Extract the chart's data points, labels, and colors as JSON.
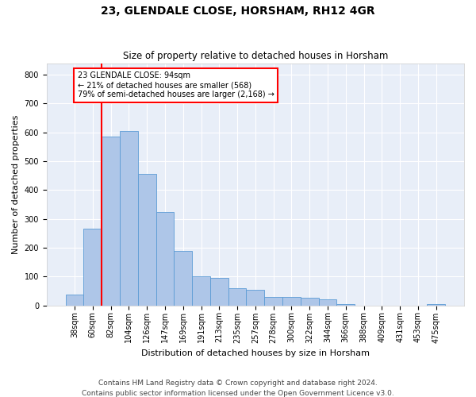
{
  "title": "23, GLENDALE CLOSE, HORSHAM, RH12 4GR",
  "subtitle": "Size of property relative to detached houses in Horsham",
  "xlabel": "Distribution of detached houses by size in Horsham",
  "ylabel": "Number of detached properties",
  "footer1": "Contains HM Land Registry data © Crown copyright and database right 2024.",
  "footer2": "Contains public sector information licensed under the Open Government Licence v3.0.",
  "categories": [
    "38sqm",
    "60sqm",
    "82sqm",
    "104sqm",
    "126sqm",
    "147sqm",
    "169sqm",
    "191sqm",
    "213sqm",
    "235sqm",
    "257sqm",
    "278sqm",
    "300sqm",
    "322sqm",
    "344sqm",
    "366sqm",
    "388sqm",
    "409sqm",
    "431sqm",
    "453sqm",
    "475sqm"
  ],
  "values": [
    38,
    265,
    585,
    605,
    455,
    325,
    190,
    100,
    95,
    60,
    55,
    30,
    30,
    25,
    20,
    5,
    0,
    0,
    0,
    0,
    5
  ],
  "bar_color": "#aec6e8",
  "bar_edge_color": "#5b9bd5",
  "annotation_text_line1": "23 GLENDALE CLOSE: 94sqm",
  "annotation_text_line2": "← 21% of detached houses are smaller (568)",
  "annotation_text_line3": "79% of semi-detached houses are larger (2,168) →",
  "annotation_box_color": "red",
  "annotation_fill": "white",
  "vline_x_index": 1.5,
  "ylim": [
    0,
    840
  ],
  "yticks": [
    0,
    100,
    200,
    300,
    400,
    500,
    600,
    700,
    800
  ],
  "plot_bg_color": "#e8eef8",
  "grid_color": "#ffffff",
  "title_fontsize": 10,
  "subtitle_fontsize": 8.5,
  "ylabel_fontsize": 8,
  "xlabel_fontsize": 8,
  "tick_fontsize": 7,
  "footer_fontsize": 6.5
}
